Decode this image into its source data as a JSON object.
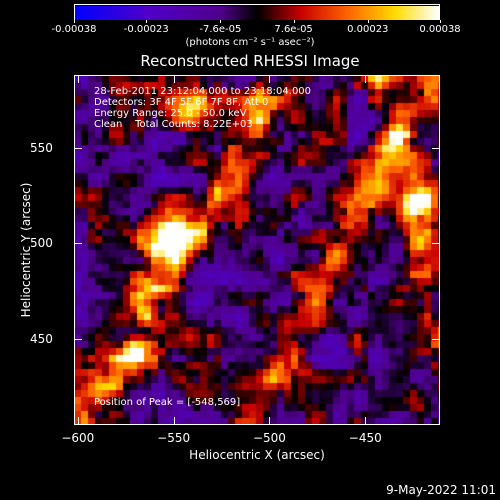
{
  "colorbar": {
    "ticks": [
      "-0.00038",
      "-0.00023",
      "-7.6e-05",
      "7.6e-05",
      "0.00023",
      "0.00038"
    ],
    "tick_values": [
      -0.00038,
      -0.00023,
      -7.6e-05,
      7.6e-05,
      0.00023,
      0.00038
    ],
    "range": [
      -0.00038,
      0.00038
    ],
    "units": "(photons cm⁻² s⁻¹ asec⁻²)"
  },
  "chart_data": {
    "type": "heatmap",
    "title": "Reconstructed RHESSI Image",
    "xlabel": "Heliocentric X (arcsec)",
    "ylabel": "Heliocentric Y (arcsec)",
    "xlim": [
      -602,
      -411
    ],
    "ylim": [
      405,
      588
    ],
    "xticks": [
      -600,
      -550,
      -500,
      -450
    ],
    "yticks": [
      450,
      500,
      550
    ],
    "xtick_labels": [
      "−600",
      "−550",
      "−500",
      "−450"
    ],
    "ytick_labels": [
      "450",
      "500",
      "550"
    ],
    "peak_position": [
      -548,
      569
    ],
    "colormap": "rhessi-blue-purple-red-yellow-white"
  },
  "info": {
    "time": "28-Feb-2011 23:12:04.000 to 23:18:04.000",
    "detectors": "Detectors: 3F 4F 5F 6F 7F 8F, Att 0",
    "energy": "Energy Range: 25.0 - 50.0 keV",
    "clean": "Clean    Total Counts: 8.22E+03",
    "peak": "Position of Peak = [-548,569]"
  },
  "footer": {
    "date": "9-May-2022 11:01"
  }
}
